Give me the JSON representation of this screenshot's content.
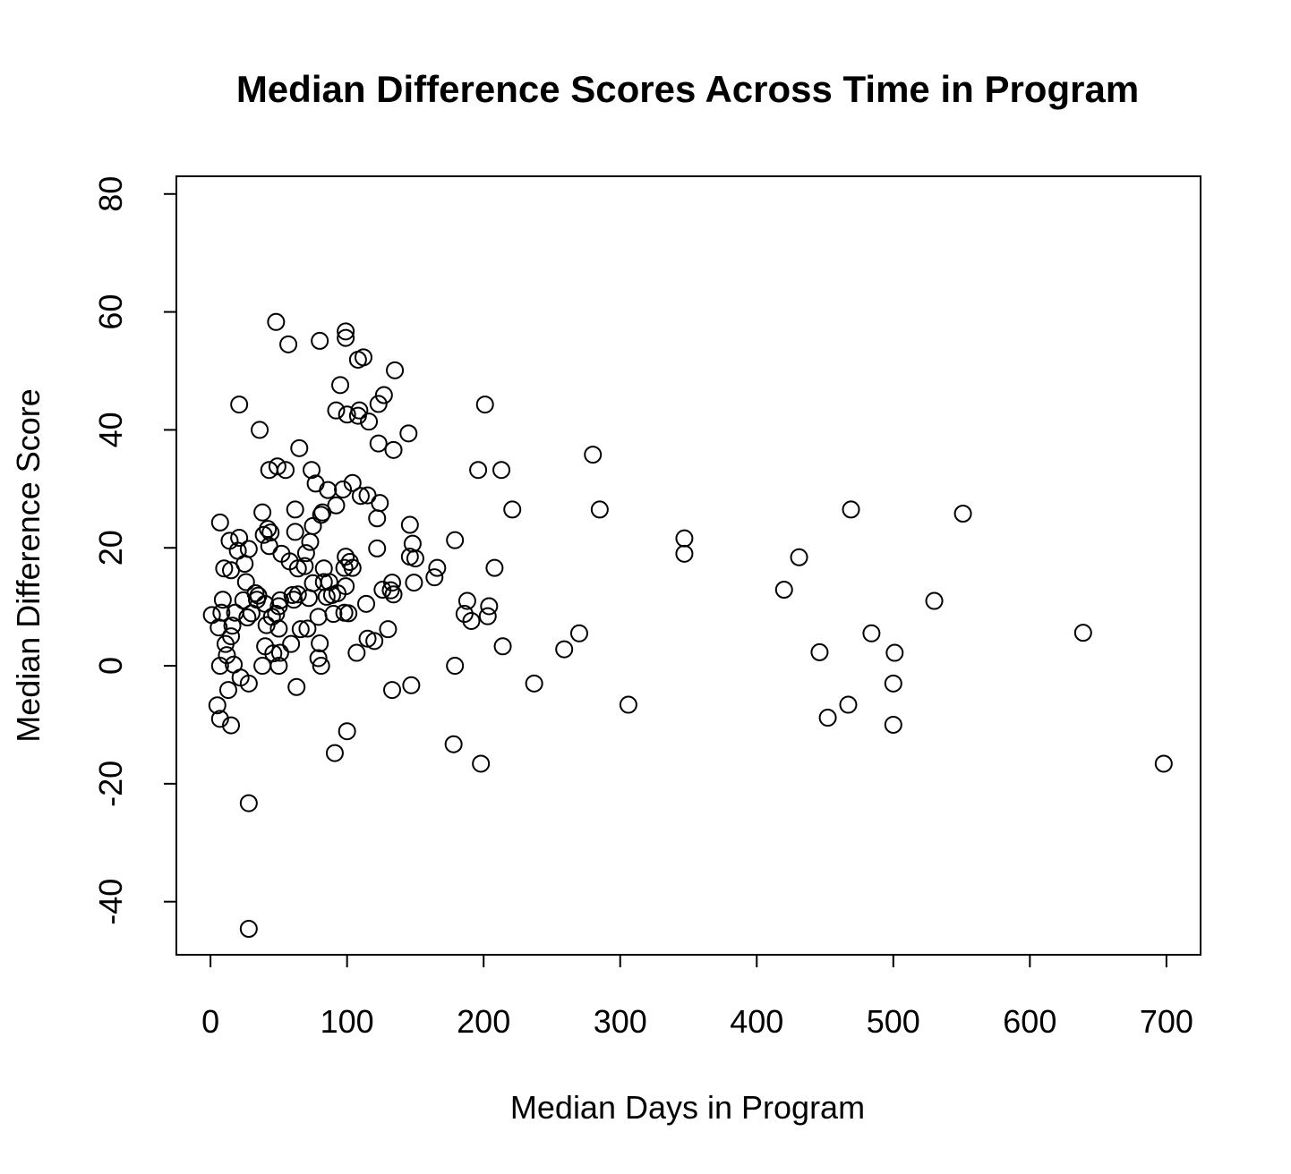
{
  "chart_data": {
    "type": "scatter",
    "title": "Median Difference Scores Across Time in Program",
    "xlabel": "Median Days in Program",
    "ylabel": "Median Difference Score",
    "xlim": [
      -25,
      725
    ],
    "ylim": [
      -49,
      83
    ],
    "xticks": [
      0,
      100,
      200,
      300,
      400,
      500,
      600,
      700
    ],
    "yticks": [
      -40,
      -20,
      0,
      20,
      40,
      60,
      80
    ],
    "grid": false,
    "legend": "none",
    "marker": "open-circle",
    "color": "#000000",
    "points": [
      [
        1,
        8.6
      ],
      [
        5,
        -6.7
      ],
      [
        6,
        6.5
      ],
      [
        7,
        24.3
      ],
      [
        7,
        0
      ],
      [
        7,
        -9
      ],
      [
        8,
        9
      ],
      [
        9,
        11.2
      ],
      [
        10,
        16.5
      ],
      [
        11,
        3.7
      ],
      [
        12,
        1.8
      ],
      [
        13,
        -4.1
      ],
      [
        14,
        21.2
      ],
      [
        15,
        16.2
      ],
      [
        15,
        5
      ],
      [
        15,
        -10.1
      ],
      [
        16,
        6.8
      ],
      [
        17,
        0.2
      ],
      [
        18,
        9
      ],
      [
        20,
        19.5
      ],
      [
        21,
        44.3
      ],
      [
        21,
        21.7
      ],
      [
        22,
        -2
      ],
      [
        24,
        11.1
      ],
      [
        25,
        17.3
      ],
      [
        26,
        14.2
      ],
      [
        27,
        8.2
      ],
      [
        28,
        19.8
      ],
      [
        28,
        -23.3
      ],
      [
        28,
        -44.6
      ],
      [
        28,
        -3
      ],
      [
        30,
        8.9
      ],
      [
        33,
        12.3
      ],
      [
        34,
        11.2
      ],
      [
        35,
        11.9
      ],
      [
        36,
        40
      ],
      [
        38,
        0
      ],
      [
        38,
        26
      ],
      [
        39,
        22.2
      ],
      [
        40,
        3.3
      ],
      [
        40,
        10.5
      ],
      [
        41,
        6.9
      ],
      [
        42,
        23.2
      ],
      [
        43,
        20.3
      ],
      [
        43,
        33.2
      ],
      [
        44,
        22.6
      ],
      [
        45,
        8.3
      ],
      [
        46,
        2.1
      ],
      [
        48,
        58.3
      ],
      [
        48,
        8.8
      ],
      [
        49,
        33.8
      ],
      [
        50,
        10.1
      ],
      [
        50,
        6.3
      ],
      [
        50,
        0
      ],
      [
        51,
        2.2
      ],
      [
        51,
        11.1
      ],
      [
        52,
        19
      ],
      [
        55,
        33.2
      ],
      [
        57,
        54.5
      ],
      [
        58,
        17.7
      ],
      [
        59,
        3.7
      ],
      [
        60,
        12
      ],
      [
        61,
        11.2
      ],
      [
        62,
        26.5
      ],
      [
        62,
        22.7
      ],
      [
        63,
        -3.6
      ],
      [
        64,
        12.1
      ],
      [
        64,
        16.5
      ],
      [
        65,
        36.9
      ],
      [
        66,
        6.2
      ],
      [
        69,
        16.9
      ],
      [
        70,
        19.1
      ],
      [
        71,
        6.3
      ],
      [
        72,
        11.5
      ],
      [
        73,
        21
      ],
      [
        74,
        33.2
      ],
      [
        75,
        14
      ],
      [
        75,
        23.7
      ],
      [
        77,
        30.9
      ],
      [
        79,
        8.3
      ],
      [
        79,
        1.3
      ],
      [
        80,
        55.1
      ],
      [
        80,
        3.8
      ],
      [
        81,
        25.6
      ],
      [
        81,
        0
      ],
      [
        82,
        26
      ],
      [
        83,
        16.5
      ],
      [
        83,
        14.2
      ],
      [
        85,
        11.7
      ],
      [
        86,
        29.8
      ],
      [
        87,
        14.2
      ],
      [
        89,
        12
      ],
      [
        90,
        8.8
      ],
      [
        91,
        -14.8
      ],
      [
        92,
        27.2
      ],
      [
        92,
        43.3
      ],
      [
        93,
        12.3
      ],
      [
        95,
        47.6
      ],
      [
        97,
        29.9
      ],
      [
        98,
        16.6
      ],
      [
        98,
        9
      ],
      [
        99,
        18.5
      ],
      [
        99,
        13.5
      ],
      [
        99,
        55.6
      ],
      [
        99,
        56.7
      ],
      [
        100,
        42.6
      ],
      [
        100,
        -11.1
      ],
      [
        101,
        8.9
      ],
      [
        102,
        17.6
      ],
      [
        104,
        16.6
      ],
      [
        104,
        31
      ],
      [
        107,
        2.2
      ],
      [
        108,
        51.9
      ],
      [
        108,
        42.4
      ],
      [
        109,
        43.3
      ],
      [
        110,
        28.8
      ],
      [
        112,
        52.3
      ],
      [
        114,
        10.5
      ],
      [
        115,
        4.6
      ],
      [
        115,
        28.9
      ],
      [
        116,
        41.4
      ],
      [
        120,
        4.2
      ],
      [
        122,
        25
      ],
      [
        122,
        19.9
      ],
      [
        123,
        44.4
      ],
      [
        123,
        37.7
      ],
      [
        124,
        27.6
      ],
      [
        126,
        12.9
      ],
      [
        127,
        45.9
      ],
      [
        130,
        6.2
      ],
      [
        132,
        12.8
      ],
      [
        133,
        14.1
      ],
      [
        133,
        -4.1
      ],
      [
        134,
        12.1
      ],
      [
        134,
        36.6
      ],
      [
        135,
        50.1
      ],
      [
        145,
        39.4
      ],
      [
        146,
        18.5
      ],
      [
        146,
        23.9
      ],
      [
        147,
        -3.3
      ],
      [
        148,
        20.7
      ],
      [
        149,
        14.1
      ],
      [
        150,
        18.2
      ],
      [
        164,
        15
      ],
      [
        166,
        16.6
      ],
      [
        178,
        -13.3
      ],
      [
        179,
        0
      ],
      [
        179,
        21.3
      ],
      [
        186,
        8.8
      ],
      [
        188,
        11
      ],
      [
        191,
        7.6
      ],
      [
        196,
        33.2
      ],
      [
        198,
        -16.6
      ],
      [
        201,
        44.3
      ],
      [
        203,
        8.4
      ],
      [
        204,
        10.1
      ],
      [
        208,
        16.6
      ],
      [
        213,
        33.2
      ],
      [
        214,
        3.3
      ],
      [
        221,
        26.5
      ],
      [
        237,
        -3
      ],
      [
        259,
        2.8
      ],
      [
        270,
        5.5
      ],
      [
        280,
        35.8
      ],
      [
        285,
        26.5
      ],
      [
        306,
        -6.6
      ],
      [
        347,
        21.6
      ],
      [
        347,
        19
      ],
      [
        420,
        12.9
      ],
      [
        431,
        18.4
      ],
      [
        446,
        2.3
      ],
      [
        452,
        -8.8
      ],
      [
        467,
        -6.6
      ],
      [
        469,
        26.5
      ],
      [
        484,
        5.5
      ],
      [
        500,
        -10
      ],
      [
        500,
        -3
      ],
      [
        501,
        2.2
      ],
      [
        530,
        11
      ],
      [
        551,
        25.8
      ],
      [
        639,
        5.6
      ],
      [
        698,
        -16.6
      ]
    ]
  }
}
